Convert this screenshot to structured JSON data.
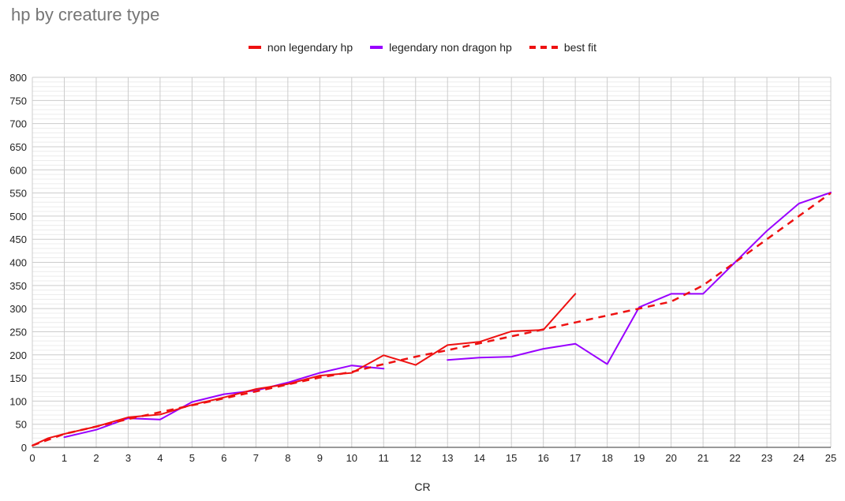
{
  "chart_data": {
    "type": "line",
    "title": "hp by creature type",
    "xlabel": "CR",
    "ylabel": "",
    "xlim": [
      0,
      25
    ],
    "ylim": [
      0,
      800
    ],
    "xticks": [
      0,
      1,
      2,
      3,
      4,
      5,
      6,
      7,
      8,
      9,
      10,
      11,
      12,
      13,
      14,
      15,
      16,
      17,
      18,
      19,
      20,
      21,
      22,
      23,
      24,
      25
    ],
    "yticks": [
      0,
      50,
      100,
      150,
      200,
      250,
      300,
      350,
      400,
      450,
      500,
      550,
      600,
      650,
      700,
      750,
      800
    ],
    "grid": true,
    "legend_position": "top",
    "series": [
      {
        "name": "non legendary hp",
        "color": "#ee1111",
        "dashed": false,
        "x": [
          0,
          0.5,
          1,
          2,
          3,
          4,
          5,
          6,
          7,
          8,
          9,
          10,
          11,
          12,
          13,
          14,
          15,
          16,
          17
        ],
        "y": [
          4,
          20,
          29,
          45,
          65,
          71,
          92,
          108,
          126,
          137,
          155,
          161,
          199,
          178,
          221,
          228,
          251,
          254,
          332
        ]
      },
      {
        "name": "legendary non dragon hp",
        "color": "#9900ff",
        "dashed": false,
        "segments": [
          {
            "x": [
              1,
              2,
              3,
              4,
              5,
              6,
              7,
              8,
              9,
              10,
              11
            ],
            "y": [
              22,
              38,
              63,
              60,
              98,
              115,
              123,
              140,
              161,
              177,
              170
            ]
          },
          {
            "x": [
              13,
              14,
              15,
              16,
              17,
              18,
              19,
              20,
              21,
              22,
              23,
              24,
              25
            ],
            "y": [
              189,
              194,
              196,
              213,
              224,
              180,
              303,
              332,
              332,
              400,
              468,
              527,
              551
            ]
          }
        ]
      },
      {
        "name": "best fit",
        "color": "#ee1111",
        "dashed": true,
        "x": [
          0,
          1,
          2,
          3,
          4,
          5,
          6,
          7,
          8,
          9,
          10,
          11,
          12,
          13,
          14,
          15,
          16,
          17,
          18,
          19,
          20,
          21,
          22,
          23,
          24,
          25
        ],
        "y": [
          4,
          29,
          45,
          61,
          76,
          91,
          106,
          121,
          136,
          151,
          163,
          180,
          196,
          210,
          225,
          240,
          255,
          270,
          285,
          300,
          315,
          350,
          400,
          450,
          500,
          550
        ]
      }
    ]
  }
}
